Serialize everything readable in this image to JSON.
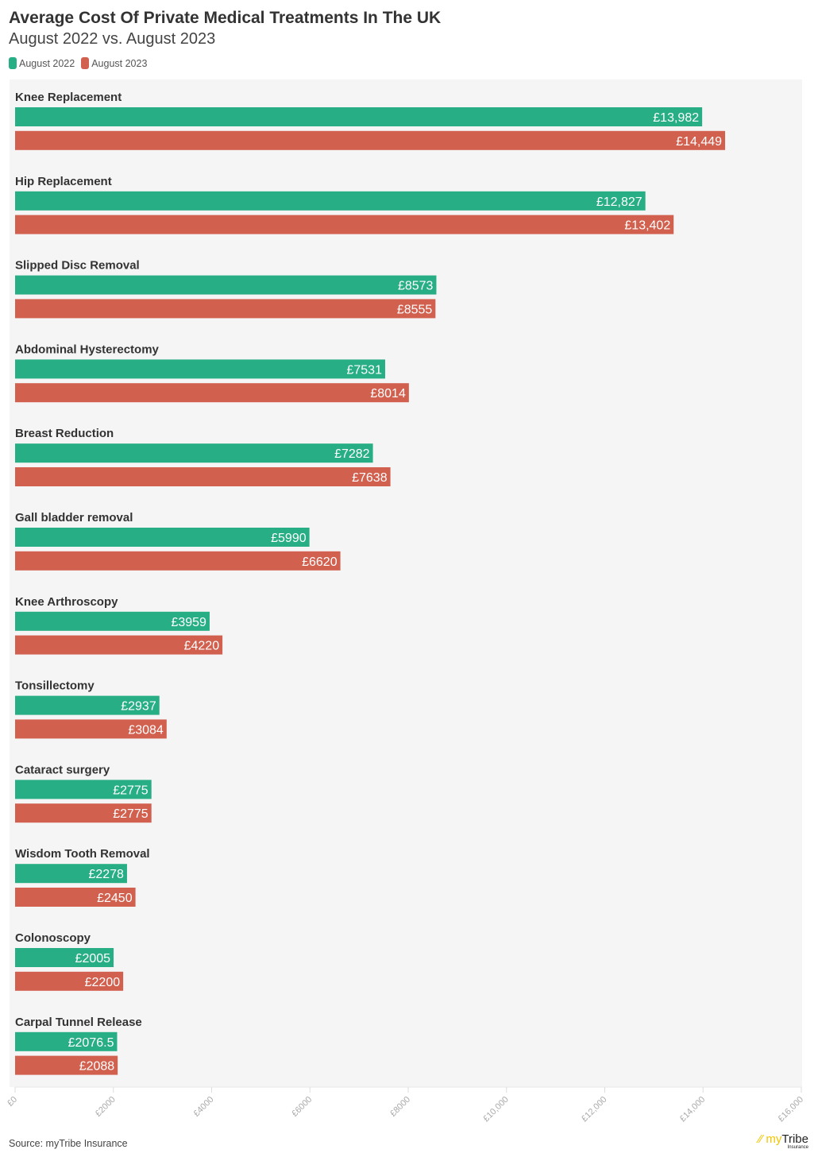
{
  "title": "Average Cost Of Private Medical Treatments In The UK",
  "subtitle": "August 2022 vs. August 2023",
  "source": "Source: myTribe Insurance",
  "logo": "myTribe Insurance",
  "colors": {
    "August 2022": "#27ae84",
    "August 2023": "#d2604f"
  },
  "chart_data": {
    "type": "bar",
    "orientation": "horizontal",
    "title": "Average Cost Of Private Medical Treatments In The UK",
    "subtitle": "August 2022 vs. August 2023",
    "legend": "top-left",
    "xlim": [
      0,
      16000
    ],
    "xticks": [
      "£0",
      "£2000",
      "£4000",
      "£6000",
      "£8000",
      "£10,000",
      "£12,000",
      "£14,000",
      "£16,000"
    ],
    "xtick_values": [
      0,
      2000,
      4000,
      6000,
      8000,
      10000,
      12000,
      14000,
      16000
    ],
    "categories": [
      "Knee Replacement",
      "Hip Replacement",
      "Slipped Disc Removal",
      "Abdominal Hysterectomy",
      "Breast Reduction",
      "Gall bladder removal",
      "Knee Arthroscopy",
      "Tonsillectomy",
      "Cataract surgery",
      "Wisdom Tooth Removal",
      "Colonoscopy",
      "Carpal Tunnel Release"
    ],
    "series": [
      {
        "name": "August 2022",
        "values": [
          13982,
          12827,
          8573,
          7531,
          7282,
          5990,
          3959,
          2937,
          2775,
          2278,
          2005,
          2076.5
        ],
        "labels": [
          "£13,982",
          "£12,827",
          "£8573",
          "£7531",
          "£7282",
          "£5990",
          "£3959",
          "£2937",
          "£2775",
          "£2278",
          "£2005",
          "£2076.5"
        ]
      },
      {
        "name": "August 2023",
        "values": [
          14449,
          13402,
          8555,
          8014,
          7638,
          6620,
          4220,
          3084,
          2775,
          2450,
          2200,
          2088
        ],
        "labels": [
          "£14,449",
          "£13,402",
          "£8555",
          "£8014",
          "£7638",
          "£6620",
          "£4220",
          "£3084",
          "£2775",
          "£2450",
          "£2200",
          "£2088"
        ]
      }
    ]
  }
}
